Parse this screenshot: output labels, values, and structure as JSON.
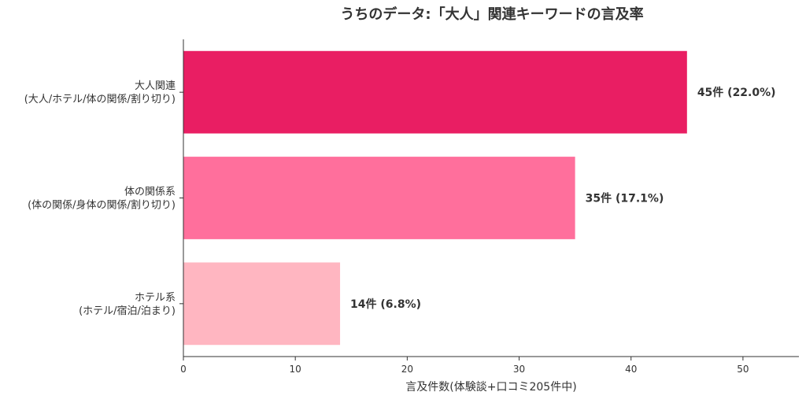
{
  "chart_data": {
    "type": "bar",
    "orientation": "horizontal",
    "title": "うちのデータ:「大人」関連キーワードの言及率",
    "xlabel": "言及件数(体験談+口コミ205件中)",
    "ylabel": "",
    "xlim": [
      0,
      55
    ],
    "xticks": [
      0,
      10,
      20,
      30,
      40,
      50
    ],
    "grid": false,
    "categories": [
      {
        "line1": "大人関連",
        "line2": "(大人/ホテル/体の関係/割り切り)"
      },
      {
        "line1": "体の関係系",
        "line2": "(体の関係/身体の関係/割り切り)"
      },
      {
        "line1": "ホテル系",
        "line2": "(ホテル/宿泊/泊まり)"
      }
    ],
    "values": [
      45,
      35,
      14
    ],
    "data_labels": [
      "45件 (22.0%)",
      "35件 (17.1%)",
      "14件 (6.8%)"
    ],
    "colors": [
      "#e91e63",
      "#ff6f9c",
      "#ffb6c1"
    ]
  }
}
